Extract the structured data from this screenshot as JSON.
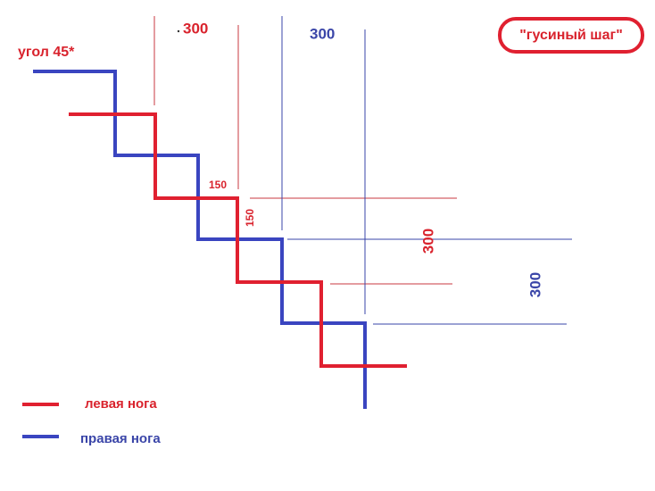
{
  "title": "\"гусиный шаг\"",
  "angle_label": "угол 45*",
  "dimensions": {
    "left_step_top": "300",
    "right_step_top": "300",
    "riser_horizontal": "150",
    "riser_vertical": "150",
    "left_pitch": "300",
    "right_pitch": "300"
  },
  "legend": [
    {
      "label": "левая нога"
    },
    {
      "label": "правая нога"
    }
  ]
}
